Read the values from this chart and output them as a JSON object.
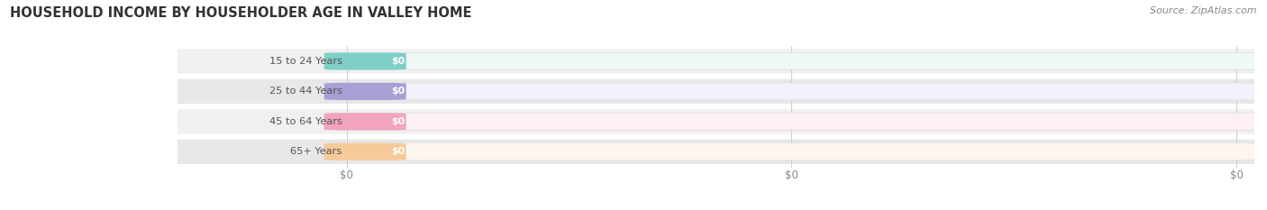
{
  "title": "HOUSEHOLD INCOME BY HOUSEHOLDER AGE IN VALLEY HOME",
  "source": "Source: ZipAtlas.com",
  "categories": [
    "15 to 24 Years",
    "25 to 44 Years",
    "45 to 64 Years",
    "65+ Years"
  ],
  "values": [
    0,
    0,
    0,
    0
  ],
  "bar_colors": [
    "#7ecfc8",
    "#a99fd5",
    "#f2a4bc",
    "#f7ca9a"
  ],
  "bar_bg_colors": [
    "#eef8f7",
    "#f3f1fa",
    "#fdf0f5",
    "#fdf6ee"
  ],
  "row_bg_colors": [
    "#f0f0f0",
    "#e8e8e8",
    "#f0f0f0",
    "#e8e8e8"
  ],
  "background_color": "#ffffff",
  "title_color": "#333333",
  "source_color": "#888888",
  "label_text_color": "#555555",
  "value_text_color": "#ffffff",
  "tick_color": "#888888",
  "grid_color": "#cccccc"
}
